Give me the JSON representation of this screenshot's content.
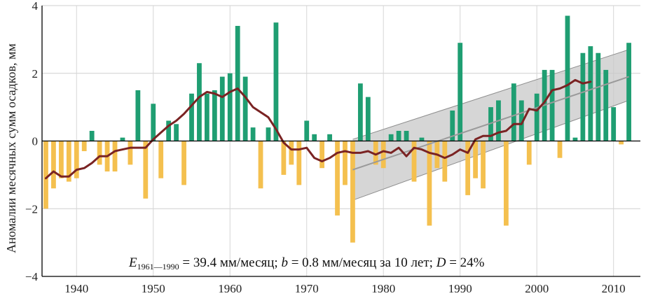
{
  "chart_data": {
    "type": "bar",
    "ylabel": "Аномалии месячных сумм осадков, мм",
    "xlim": [
      1935.5,
      2013.5
    ],
    "ylim": [
      -4,
      4
    ],
    "y_ticks": [
      -4,
      -2,
      0,
      2,
      4
    ],
    "x_ticks": [
      1940,
      1950,
      1960,
      1970,
      1980,
      1990,
      2000,
      2010
    ],
    "grid": true,
    "colors": {
      "positive": "#1f9e72",
      "negative": "#f4c04f",
      "smooth": "#7a2323",
      "trend": "#9a9a9a",
      "band": "#c8c8c8"
    },
    "years": [
      1936,
      1937,
      1938,
      1939,
      1940,
      1941,
      1942,
      1943,
      1944,
      1945,
      1946,
      1947,
      1948,
      1949,
      1950,
      1951,
      1952,
      1953,
      1954,
      1955,
      1956,
      1957,
      1958,
      1959,
      1960,
      1961,
      1962,
      1963,
      1964,
      1965,
      1966,
      1967,
      1968,
      1969,
      1970,
      1971,
      1972,
      1973,
      1974,
      1975,
      1976,
      1977,
      1978,
      1979,
      1980,
      1981,
      1982,
      1983,
      1984,
      1985,
      1986,
      1987,
      1988,
      1989,
      1990,
      1991,
      1992,
      1993,
      1994,
      1995,
      1996,
      1997,
      1998,
      1999,
      2000,
      2001,
      2002,
      2003,
      2004,
      2005,
      2006,
      2007,
      2008,
      2009,
      2010,
      2011,
      2012
    ],
    "values": [
      -2.0,
      -1.4,
      -1.1,
      -1.2,
      -1.1,
      -0.3,
      0.3,
      -0.7,
      -0.9,
      -0.9,
      0.1,
      -0.7,
      1.5,
      -1.7,
      1.1,
      -1.1,
      0.6,
      0.5,
      -1.3,
      1.4,
      2.3,
      1.4,
      1.5,
      1.9,
      2.0,
      3.4,
      1.9,
      0.4,
      -1.4,
      0.4,
      3.5,
      -1.0,
      -0.7,
      -1.3,
      0.6,
      0.2,
      -0.8,
      0.2,
      -2.2,
      -1.3,
      -3.0,
      1.7,
      1.3,
      -0.7,
      -0.8,
      0.2,
      0.3,
      0.3,
      -1.2,
      0.1,
      -2.5,
      -0.8,
      -1.2,
      0.9,
      2.9,
      -1.6,
      -1.1,
      -1.4,
      1.0,
      1.2,
      -2.5,
      1.7,
      1.2,
      -0.7,
      1.4,
      2.1,
      2.1,
      -0.5,
      3.7,
      0.1,
      2.6,
      2.8,
      2.6,
      2.1,
      1.0,
      -0.1,
      2.9
    ],
    "smooth": {
      "name": "",
      "x": [
        1936,
        1937,
        1938,
        1939,
        1940,
        1941,
        1942,
        1943,
        1944,
        1945,
        1946,
        1947,
        1948,
        1949,
        1950,
        1951,
        1952,
        1953,
        1954,
        1955,
        1956,
        1957,
        1958,
        1959,
        1960,
        1961,
        1962,
        1963,
        1964,
        1965,
        1966,
        1967,
        1968,
        1969,
        1970,
        1971,
        1972,
        1973,
        1974,
        1975,
        1976,
        1977,
        1978,
        1979,
        1980,
        1981,
        1982,
        1983,
        1984,
        1985,
        1986,
        1987,
        1988,
        1989,
        1990,
        1991,
        1992,
        1993,
        1994,
        1995,
        1996,
        1997,
        1998,
        1999,
        2000,
        2001,
        2002,
        2003,
        2004,
        2005,
        2006,
        2007
      ],
      "y": [
        -1.1,
        -0.9,
        -1.05,
        -1.05,
        -0.85,
        -0.8,
        -0.65,
        -0.45,
        -0.45,
        -0.3,
        -0.25,
        -0.2,
        -0.2,
        -0.2,
        0.05,
        0.25,
        0.45,
        0.6,
        0.8,
        1.05,
        1.3,
        1.45,
        1.4,
        1.3,
        1.45,
        1.55,
        1.3,
        1.0,
        0.85,
        0.7,
        0.35,
        -0.05,
        -0.25,
        -0.25,
        -0.2,
        -0.5,
        -0.6,
        -0.5,
        -0.35,
        -0.3,
        -0.35,
        -0.35,
        -0.3,
        -0.4,
        -0.3,
        -0.35,
        -0.2,
        -0.45,
        -0.2,
        -0.25,
        -0.35,
        -0.4,
        -0.5,
        -0.4,
        -0.25,
        -0.35,
        0.05,
        0.15,
        0.15,
        0.25,
        0.3,
        0.5,
        0.5,
        0.95,
        0.9,
        1.15,
        1.5,
        1.55,
        1.65,
        1.8,
        1.7,
        1.75
      ]
    },
    "trend": {
      "x": [
        1976,
        2012
      ],
      "y": [
        -0.85,
        1.9
      ]
    },
    "confidence_band": {
      "x": [
        1976,
        2012
      ],
      "lower": [
        -1.75,
        1.2
      ],
      "upper": [
        0.05,
        2.7
      ]
    },
    "annotation": {
      "e_symbol": "E",
      "e_sub": "1961—1990",
      "e_text": " = 39.4 мм/месяц;  ",
      "b_symbol": "b",
      "b_text": " = 0.8 мм/месяц за 10 лет;  ",
      "d_symbol": "D",
      "d_text": " = 24%"
    }
  }
}
